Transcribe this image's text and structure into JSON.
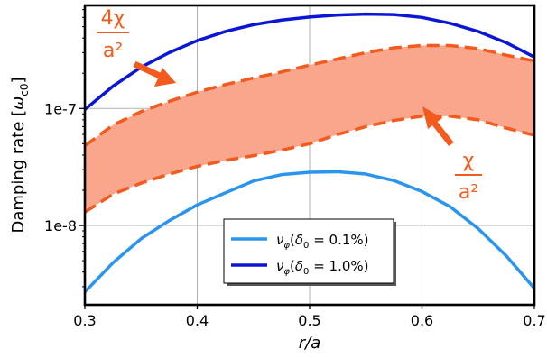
{
  "chart_data": {
    "type": "line",
    "xlabel": "r/a",
    "ylabel": "Damping rate [ω_c0]",
    "ylabel_main": "Damping rate [",
    "ylabel_omega": "ω",
    "ylabel_sub": "c0",
    "ylabel_close": "]",
    "xlim": [
      0.3,
      0.7
    ],
    "ylim": [
      2.1e-09,
      7.6e-07
    ],
    "yscale": "log",
    "grid": true,
    "x_ticks": [
      0.3,
      0.4,
      0.5,
      0.6,
      0.7
    ],
    "x_tick_labels": [
      "0.3",
      "0.4",
      "0.5",
      "0.6",
      "0.7"
    ],
    "y_ticks": [
      1e-08,
      1e-07
    ],
    "y_tick_labels": [
      "1e-8",
      "1e-7"
    ],
    "x": [
      0.3,
      0.325,
      0.35,
      0.375,
      0.4,
      0.425,
      0.45,
      0.475,
      0.5,
      0.525,
      0.55,
      0.575,
      0.6,
      0.625,
      0.65,
      0.675,
      0.7
    ],
    "series": [
      {
        "label_nu": "ν",
        "label_phi": "φ",
        "label_delta": "δ",
        "label_zero": "0",
        "label_value": " = 0.1%",
        "color": "#2b95ee",
        "style": "solid",
        "values": [
          2.7e-09,
          4.8e-09,
          7.7e-09,
          1.1e-08,
          1.5e-08,
          1.9e-08,
          2.4e-08,
          2.72e-08,
          2.85e-08,
          2.88e-08,
          2.75e-08,
          2.42e-08,
          1.95e-08,
          1.45e-08,
          9.4e-09,
          5.5e-09,
          2.9e-09
        ]
      },
      {
        "label_nu": "ν",
        "label_phi": "φ",
        "label_delta": "δ",
        "label_zero": "0",
        "label_value": " = 1.0%",
        "color": "#0b16d4",
        "style": "solid",
        "values": [
          9.8e-08,
          1.55e-07,
          2.25e-07,
          3e-07,
          3.8e-07,
          4.55e-07,
          5.2e-07,
          5.7e-07,
          6.05e-07,
          6.3e-07,
          6.4e-07,
          6.35e-07,
          6e-07,
          5.35e-07,
          4.55e-07,
          3.65e-07,
          2.75e-07
        ]
      }
    ],
    "band": {
      "fill_color": "#f9a68c",
      "line_color": "#f25a1e",
      "style": "dashed",
      "upper_label": "4χ/a²",
      "lower_label": "χ/a²",
      "upper": [
        4.8e-08,
        7.2e-08,
        9.4e-08,
        1.15e-07,
        1.38e-07,
        1.6e-07,
        1.82e-07,
        2.05e-07,
        2.35e-07,
        2.65e-07,
        3e-07,
        3.3e-07,
        3.45e-07,
        3.45e-07,
        3.25e-07,
        2.85e-07,
        2.55e-07
      ],
      "lower": [
        1.3e-08,
        1.85e-08,
        2.3e-08,
        2.75e-08,
        3.2e-08,
        3.6e-08,
        3.95e-08,
        4.4e-08,
        5e-08,
        6e-08,
        7e-08,
        7.9e-08,
        8.6e-08,
        8.6e-08,
        8e-08,
        6.8e-08,
        5.9e-08
      ]
    },
    "annotations": {
      "upper_num": "4χ",
      "upper_den": "a²",
      "lower_num": "χ",
      "lower_den": "a²",
      "color": "#f25a1e"
    },
    "legend_placement": "lower-center"
  }
}
